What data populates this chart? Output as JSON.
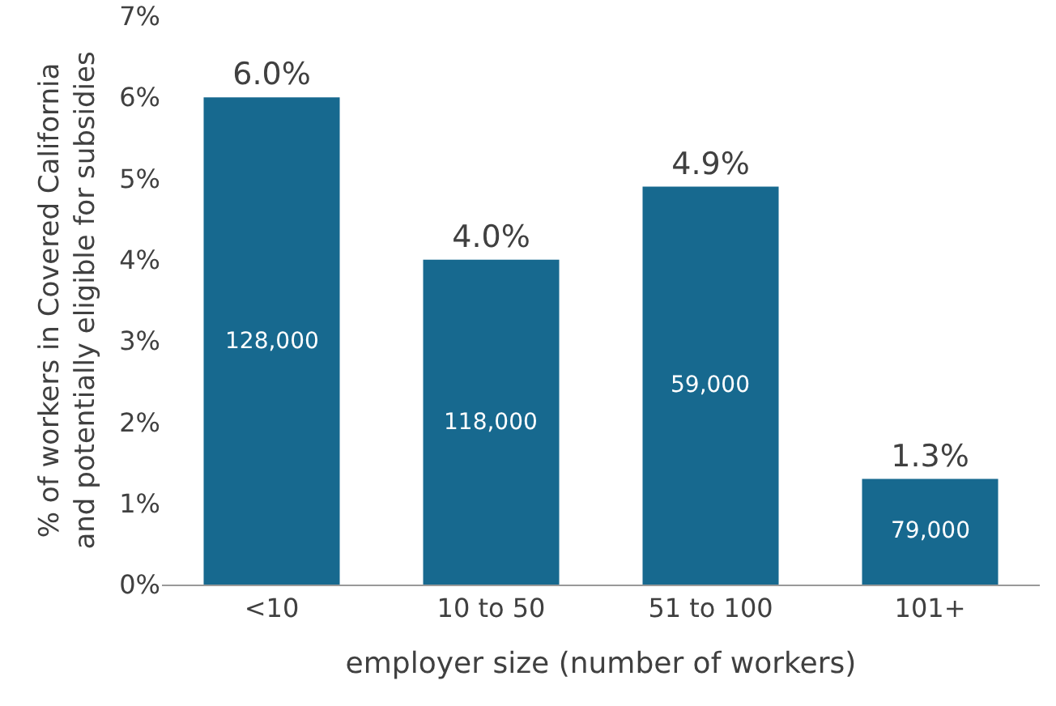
{
  "chart_data": {
    "type": "bar",
    "categories": [
      "<10",
      "10 to 50",
      "51 to 100",
      "101+"
    ],
    "values": [
      6.0,
      4.0,
      4.9,
      1.3
    ],
    "value_labels": [
      "6.0%",
      "4.0%",
      "4.9%",
      "1.3%"
    ],
    "color": "#17698f",
    "xlabel": "employer size (number of workers)",
    "ylabel": "% of workers in Covered California\nand potentially eligible for subsidies",
    "ylim": [
      0,
      7
    ],
    "yticks": [
      {
        "value": 0,
        "label": "0%"
      },
      {
        "value": 1,
        "label": "1%"
      },
      {
        "value": 2,
        "label": "2%"
      },
      {
        "value": 3,
        "label": "3%"
      },
      {
        "value": 4,
        "label": "4%"
      },
      {
        "value": 5,
        "label": "5%"
      },
      {
        "value": 6,
        "label": "6%"
      },
      {
        "value": 7,
        "label": "7%"
      }
    ],
    "annotations": [
      "128,000",
      "118,000",
      "59,000",
      "79,000"
    ],
    "grid": false
  }
}
